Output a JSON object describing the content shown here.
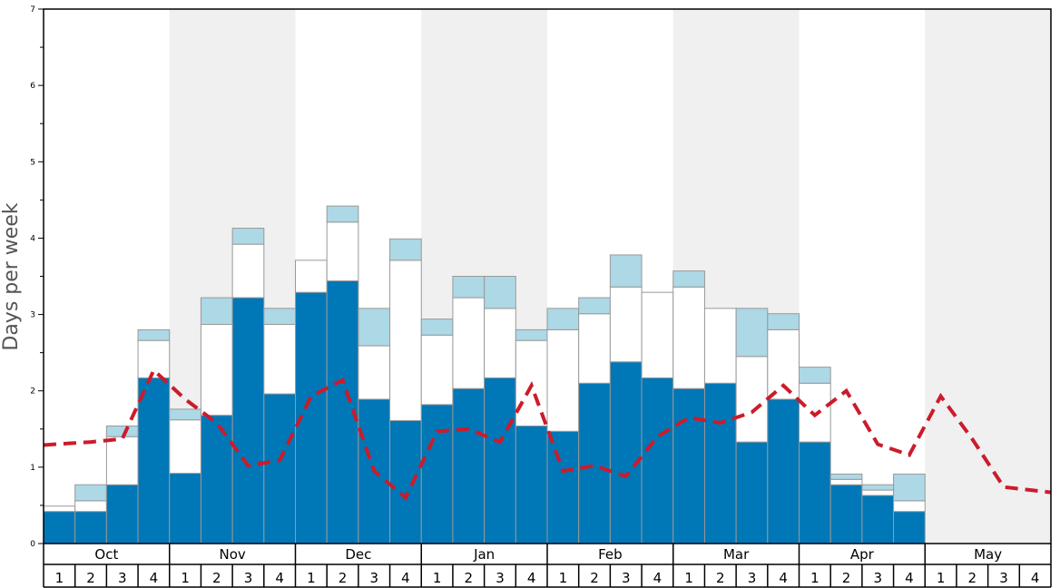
{
  "chart_data": {
    "type": "bar",
    "title": "",
    "ylabel": "Days per week",
    "xlabel": "",
    "ylim": [
      0,
      7
    ],
    "yticks": [
      "0",
      "1",
      "2",
      "3",
      "4",
      "5",
      "6",
      "7"
    ],
    "months": [
      "Oct",
      "Nov",
      "Dec",
      "Jan",
      "Feb",
      "Mar",
      "Apr",
      "May"
    ],
    "week_labels": [
      "1",
      "2",
      "3",
      "4"
    ],
    "categories": [
      "Oct 1",
      "Oct 2",
      "Oct 3",
      "Oct 4",
      "Nov 1",
      "Nov 2",
      "Nov 3",
      "Nov 4",
      "Dec 1",
      "Dec 2",
      "Dec 3",
      "Dec 4",
      "Jan 1",
      "Jan 2",
      "Jan 3",
      "Jan 4",
      "Feb 1",
      "Feb 2",
      "Feb 3",
      "Feb 4",
      "Mar 1",
      "Mar 2",
      "Mar 3",
      "Mar 4",
      "Apr 1",
      "Apr 2",
      "Apr 3",
      "Apr 4",
      "May 1",
      "May 2",
      "May 3",
      "May 4"
    ],
    "series": [
      {
        "name": "bottom (dark blue)",
        "color": "#0077b6",
        "values": [
          0.42,
          0.42,
          0.77,
          2.17,
          0.92,
          1.68,
          3.22,
          1.96,
          3.29,
          3.44,
          1.89,
          1.61,
          1.82,
          2.03,
          2.17,
          1.54,
          1.47,
          2.1,
          2.38,
          2.17,
          2.03,
          2.1,
          1.33,
          1.89,
          1.33,
          0.77,
          0.63,
          0.42,
          0,
          0,
          0,
          0
        ]
      },
      {
        "name": "middle (white)",
        "color": "#ffffff",
        "values": [
          0.07,
          0.14,
          0.63,
          0.49,
          0.7,
          1.19,
          0.7,
          0.91,
          0.42,
          0.77,
          0.7,
          2.1,
          0.91,
          1.19,
          0.91,
          1.12,
          1.33,
          0.91,
          0.98,
          1.12,
          1.33,
          0.98,
          1.12,
          0.91,
          0.77,
          0.07,
          0.07,
          0.14,
          0,
          0,
          0,
          0
        ]
      },
      {
        "name": "top (light blue)",
        "color": "#add8e6",
        "values": [
          0,
          0.21,
          0.14,
          0.14,
          0.14,
          0.35,
          0.21,
          0.21,
          0,
          0.21,
          0.49,
          0.28,
          0.21,
          0.28,
          0.42,
          0.14,
          0.28,
          0.21,
          0.42,
          0,
          0.21,
          0,
          0.63,
          0.21,
          0.21,
          0.07,
          0.07,
          0.35,
          0,
          0,
          0,
          0
        ]
      }
    ],
    "line": {
      "name": "dashed red line",
      "color": "#cc1b2b",
      "values": [
        1.29,
        1.33,
        1.37,
        2.27,
        1.89,
        1.58,
        1.02,
        1.09,
        1.93,
        2.14,
        0.95,
        0.6,
        1.47,
        1.5,
        1.33,
        2.07,
        0.95,
        1.02,
        0.88,
        1.4,
        1.65,
        1.58,
        1.72,
        2.07,
        1.68,
        2.0,
        1.3,
        1.16,
        1.93,
        1.37,
        0.74,
        0.67
      ]
    },
    "shaded_months": [
      "Nov",
      "Jan",
      "Mar",
      "May"
    ],
    "colors": {
      "shade": "#f0f0f0",
      "bar_border": "#999999",
      "axis": "#000000"
    }
  }
}
